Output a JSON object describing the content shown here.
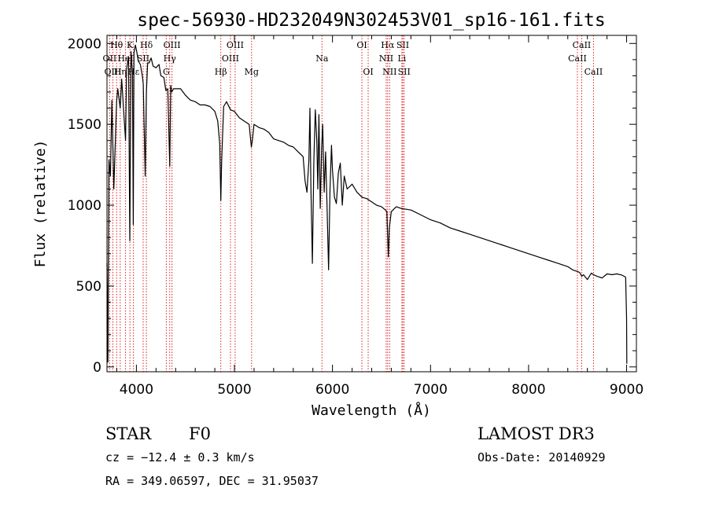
{
  "chart_data": {
    "type": "line",
    "title": "spec-56930-HD232049N302453V01_sp16-161.fits",
    "xlabel": "Wavelength (Å)",
    "ylabel": "Flux (relative)",
    "xlim": [
      3700,
      9100
    ],
    "ylim": [
      -30,
      2050
    ],
    "xticks": [
      4000,
      5000,
      6000,
      7000,
      8000,
      9000
    ],
    "yticks": [
      0,
      500,
      1000,
      1500,
      2000
    ],
    "grid": false,
    "series": [
      {
        "name": "spectrum",
        "x": [
          3700,
          3710,
          3720,
          3735,
          3750,
          3770,
          3798,
          3810,
          3835,
          3850,
          3870,
          3889,
          3900,
          3920,
          3933,
          3945,
          3960,
          3968,
          3975,
          3990,
          4000,
          4020,
          4040,
          4060,
          4070,
          4090,
          4102,
          4115,
          4130,
          4150,
          4170,
          4200,
          4230,
          4250,
          4280,
          4300,
          4320,
          4340,
          4350,
          4360,
          4380,
          4400,
          4450,
          4500,
          4550,
          4600,
          4650,
          4700,
          4750,
          4800,
          4830,
          4850,
          4861,
          4870,
          4890,
          4920,
          4960,
          5000,
          5050,
          5100,
          5150,
          5172,
          5183,
          5200,
          5250,
          5300,
          5350,
          5400,
          5450,
          5500,
          5550,
          5600,
          5650,
          5700,
          5720,
          5740,
          5760,
          5770,
          5780,
          5795,
          5810,
          5825,
          5840,
          5850,
          5862,
          5875,
          5890,
          5900,
          5915,
          5930,
          5945,
          5960,
          5975,
          5990,
          6000,
          6020,
          6040,
          6060,
          6080,
          6100,
          6120,
          6150,
          6200,
          6250,
          6300,
          6350,
          6400,
          6450,
          6500,
          6520,
          6540,
          6555,
          6563,
          6570,
          6580,
          6600,
          6650,
          6700,
          6800,
          6900,
          7000,
          7100,
          7200,
          7300,
          7400,
          7500,
          7600,
          7700,
          7800,
          7900,
          8000,
          8100,
          8200,
          8300,
          8400,
          8450,
          8498,
          8520,
          8542,
          8560,
          8600,
          8640,
          8662,
          8700,
          8750,
          8800,
          8850,
          8900,
          8950,
          8990,
          9000,
          9002
        ],
        "values": [
          640,
          30,
          1280,
          1180,
          1650,
          1100,
          1640,
          1720,
          1600,
          1780,
          1580,
          1400,
          1840,
          1920,
          780,
          1950,
          1820,
          880,
          1940,
          1990,
          1960,
          1890,
          1870,
          1800,
          1750,
          1180,
          1700,
          1880,
          1880,
          1910,
          1860,
          1850,
          1870,
          1800,
          1790,
          1710,
          1720,
          1240,
          1740,
          1700,
          1720,
          1720,
          1720,
          1680,
          1650,
          1640,
          1620,
          1620,
          1610,
          1580,
          1520,
          1380,
          1030,
          1280,
          1610,
          1640,
          1590,
          1580,
          1540,
          1520,
          1500,
          1360,
          1400,
          1500,
          1480,
          1470,
          1450,
          1410,
          1400,
          1390,
          1370,
          1360,
          1330,
          1300,
          1150,
          1080,
          1280,
          1600,
          1120,
          640,
          1280,
          1590,
          1400,
          1100,
          1560,
          980,
          1360,
          1500,
          1080,
          1330,
          980,
          600,
          1100,
          1370,
          1220,
          1050,
          1010,
          1200,
          1260,
          1000,
          1180,
          1100,
          1130,
          1080,
          1050,
          1040,
          1020,
          1000,
          990,
          980,
          970,
          960,
          800,
          680,
          860,
          960,
          990,
          980,
          970,
          940,
          910,
          890,
          860,
          840,
          820,
          800,
          780,
          760,
          740,
          720,
          700,
          680,
          660,
          640,
          620,
          600,
          590,
          585,
          560,
          570,
          540,
          580,
          570,
          560,
          550,
          575,
          570,
          575,
          568,
          555,
          300,
          20
        ]
      }
    ],
    "annotations": [
      {
        "label": "Hθ",
        "wavelength": 3798,
        "row": 1
      },
      {
        "label": "OII",
        "wavelength": 3727,
        "row": 2
      },
      {
        "label": "OIII",
        "wavelength": 3760,
        "row": 3
      },
      {
        "label": "Hη",
        "wavelength": 3835,
        "row": 3
      },
      {
        "label": "K",
        "wavelength": 3934,
        "row": 1
      },
      {
        "label": "HeI",
        "wavelength": 3889,
        "row": 2
      },
      {
        "label": "Hε",
        "wavelength": 3970,
        "row": 3
      },
      {
        "label": "Hδ",
        "wavelength": 4102,
        "row": 1
      },
      {
        "label": "SII",
        "wavelength": 4069,
        "row": 2
      },
      {
        "label": "OIII",
        "wavelength": 4363,
        "row": 1
      },
      {
        "label": "Hγ",
        "wavelength": 4340,
        "row": 2
      },
      {
        "label": "G",
        "wavelength": 4305,
        "row": 3
      },
      {
        "label": "Hβ",
        "wavelength": 4861,
        "row": 3
      },
      {
        "label": "OIII",
        "wavelength": 5007,
        "row": 1
      },
      {
        "label": "OIII",
        "wavelength": 4959,
        "row": 2
      },
      {
        "label": "Mg",
        "wavelength": 5175,
        "row": 3
      },
      {
        "label": "Na",
        "wavelength": 5893,
        "row": 2
      },
      {
        "label": "OI",
        "wavelength": 6300,
        "row": 1
      },
      {
        "label": "OI",
        "wavelength": 6364,
        "row": 3
      },
      {
        "label": "Hα",
        "wavelength": 6563,
        "row": 1
      },
      {
        "label": "NII",
        "wavelength": 6548,
        "row": 2
      },
      {
        "label": "NII",
        "wavelength": 6583,
        "row": 3
      },
      {
        "label": "SII",
        "wavelength": 6717,
        "row": 1
      },
      {
        "label": "Li",
        "wavelength": 6708,
        "row": 2
      },
      {
        "label": "SII",
        "wavelength": 6731,
        "row": 3
      },
      {
        "label": "CaII",
        "wavelength": 8542,
        "row": 1
      },
      {
        "label": "CaII",
        "wavelength": 8498,
        "row": 2
      },
      {
        "label": "CaII",
        "wavelength": 8662,
        "row": 3
      }
    ]
  },
  "info": {
    "class": "STAR",
    "subclass": "F0",
    "survey": "LAMOST DR3",
    "cz": "cz = −12.4 ± 0.3 km/s",
    "obs_date": "Obs-Date: 20140929",
    "radec": "RA = 349.06597, DEC =  31.95037"
  }
}
